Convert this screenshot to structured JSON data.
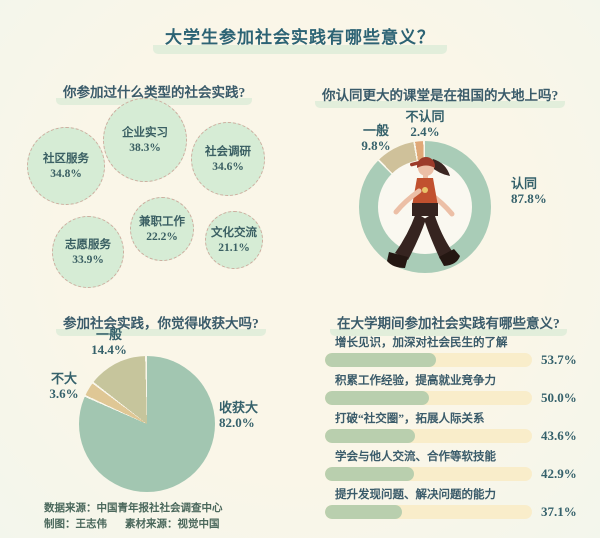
{
  "page": {
    "title": "大学生参加社会实践有哪些意义？"
  },
  "palette": {
    "background": "#f9f6ea",
    "title_teal": "#2c6374",
    "highlight_green": "#e2eedb",
    "bubble_fill": "#d6ecd5",
    "bubble_dash": "#ccae9f",
    "donut_green": "#a9ccb7",
    "donut_khaki": "#cfc19a",
    "donut_orange": "#e0a877",
    "pie_green": "#a2c6b1",
    "pie_khaki": "#c6c59c",
    "pie_tan": "#dfc795",
    "bar_fill": "#b9cfae",
    "bar_track": "#f9edca"
  },
  "chart_data": [
    {
      "type": "bubble",
      "title": "你参加过什么类型的社会实践?",
      "items": [
        {
          "label": "企业实习",
          "value": 38.3,
          "display": "38.3%"
        },
        {
          "label": "社会调研",
          "value": 34.6,
          "display": "34.6%"
        },
        {
          "label": "社区服务",
          "value": 34.8,
          "display": "34.8%"
        },
        {
          "label": "兼职工作",
          "value": 22.2,
          "display": "22.2%"
        },
        {
          "label": "文化交流",
          "value": 21.1,
          "display": "21.1%"
        },
        {
          "label": "志愿服务",
          "value": 33.9,
          "display": "33.9%"
        }
      ]
    },
    {
      "type": "pie",
      "subtype": "donut",
      "title": "你认同更大的课堂是在祖国的大地上吗?",
      "center_icon": "walking-student-illustration",
      "slices": [
        {
          "label": "认同",
          "value": 87.8,
          "display": "87.8%",
          "color": "#a9ccb7"
        },
        {
          "label": "一般",
          "value": 9.8,
          "display": "9.8%",
          "color": "#cfc19a"
        },
        {
          "label": "不认同",
          "value": 2.4,
          "display": "2.4%",
          "color": "#e0a877"
        }
      ]
    },
    {
      "type": "pie",
      "title": "参加社会实践，你觉得收获大吗?",
      "slices": [
        {
          "label": "收获大",
          "value": 82.0,
          "display": "82.0%",
          "color": "#a2c6b1"
        },
        {
          "label": "不大",
          "value": 3.6,
          "display": "3.6%",
          "color": "#dfc795"
        },
        {
          "label": "一般",
          "value": 14.4,
          "display": "14.4%",
          "color": "#c6c59c"
        }
      ]
    },
    {
      "type": "bar",
      "title": "在大学期间参加社会实践有哪些意义?",
      "orientation": "horizontal",
      "xlim": [
        0,
        100
      ],
      "categories": [
        "增长见识，加深对社会民生的了解",
        "积累工作经验，提高就业竞争力",
        "打破“社交圈”，拓展人际关系",
        "学会与他人交流、合作等软技能",
        "提升发现问题、解决问题的能力"
      ],
      "values": [
        53.7,
        50.0,
        43.6,
        42.9,
        37.1
      ],
      "displays": [
        "53.7%",
        "50.0%",
        "43.6%",
        "42.9%",
        "37.1%"
      ]
    }
  ],
  "footer": {
    "source": "数据来源：中国青年报社社会调查中心",
    "credit": "制图：王志伟",
    "material": "素材来源：视觉中国"
  }
}
